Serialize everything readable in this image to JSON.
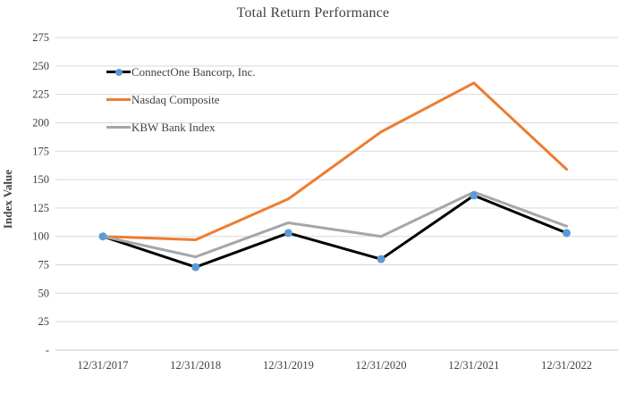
{
  "title": "Total Return Performance",
  "colors": {
    "background": "#ffffff",
    "title_text": "#404040",
    "axis_text": "#404040",
    "gridline": "#d9d9d9",
    "axis_line": "#c6c6c6",
    "connectone_line": "#000000",
    "connectone_marker": "#5b9bd5",
    "nasdaq_line": "#ed7d31",
    "kbw_line": "#a6a6a6"
  },
  "chart_data": {
    "type": "line",
    "title": "Total Return Performance",
    "xlabel": "",
    "ylabel": "Index Value",
    "categories": [
      "12/31/2017",
      "12/31/2018",
      "12/31/2019",
      "12/31/2020",
      "12/31/2021",
      "12/31/2022"
    ],
    "series": [
      {
        "name": "ConnectOne Bancorp, Inc.",
        "values": [
          100,
          73,
          103,
          80,
          136,
          103
        ],
        "color": "#000000",
        "marker": "circle",
        "marker_color": "#5b9bd5"
      },
      {
        "name": "Nasdaq Composite",
        "values": [
          100,
          97,
          133,
          192,
          235,
          159
        ],
        "color": "#ed7d31",
        "marker": "none"
      },
      {
        "name": "KBW Bank Index",
        "values": [
          100,
          82,
          112,
          100,
          139,
          109
        ],
        "color": "#a6a6a6",
        "marker": "none"
      }
    ],
    "ylim": [
      0,
      275
    ],
    "ytick_step": 25,
    "ytick_labels": [
      "275",
      "250",
      "225",
      "200",
      "175",
      "150",
      "125",
      "100",
      "75",
      "50",
      "25",
      "-"
    ],
    "grid": true,
    "legend_position": "inside-top-left"
  }
}
